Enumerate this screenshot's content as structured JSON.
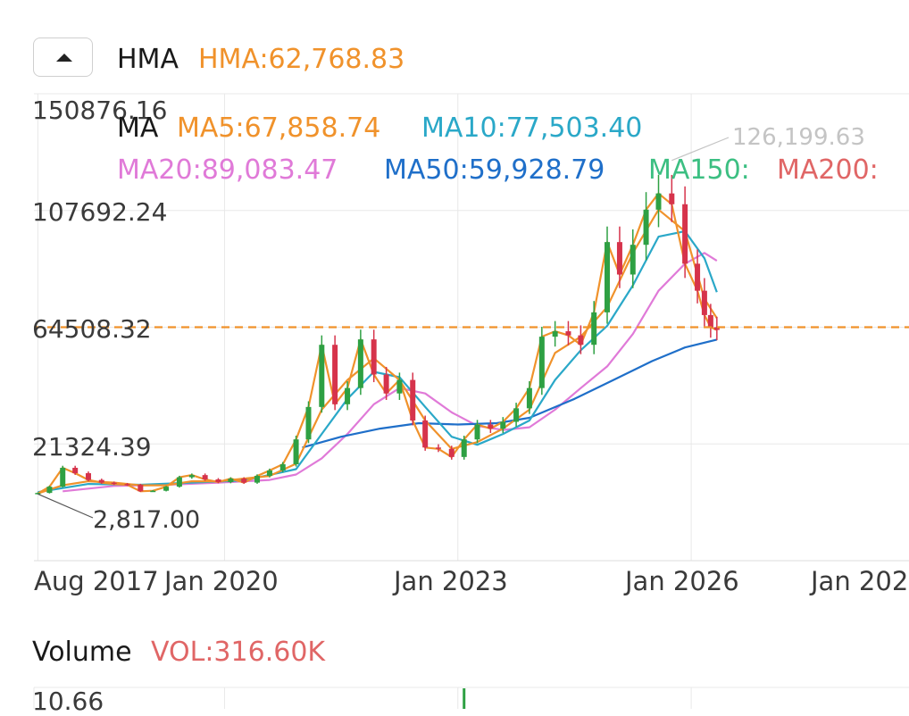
{
  "header": {
    "collapse_icon": "triangle-up-icon",
    "indicator_name": "HMA",
    "indicator_value": "HMA:62,768.83"
  },
  "ma_legend": {
    "name": "MA",
    "ma5": "MA5:67,858.74",
    "ma10": "MA10:77,503.40",
    "ma20": "MA20:89,083.47",
    "ma50": "MA50:59,928.79",
    "ma150": "MA150:",
    "ma200": "MA200:"
  },
  "colors": {
    "hma": "#f0922b",
    "ma5": "#f0922b",
    "ma10": "#2aa8c8",
    "ma20": "#e07ad8",
    "ma50": "#1f6fc9",
    "ma150": "#3cbf82",
    "ma200": "#e06666",
    "up": "#2ea043",
    "down": "#d6334b",
    "grid": "#e8e8e8",
    "current_line": "#f0922b"
  },
  "chart_data": {
    "type": "candlestick",
    "y_ticks": [
      "150876.16",
      "107692.24",
      "64508.32",
      "21324.39"
    ],
    "x_ticks": [
      "Aug 2017",
      "Jan 2020",
      "Jan 2023",
      "Jan 2026",
      "Jan 202"
    ],
    "ylim": [
      -21859,
      150876.16
    ],
    "xlim": [
      2017.55,
      2028.8
    ],
    "current_value_line": 64508.32,
    "max_label": "126,199.63",
    "max_point": [
      2025.75,
      126199.63
    ],
    "min_label": "2,817.00",
    "min_point": [
      2017.6,
      2817.0
    ],
    "series": {
      "close": [
        [
          2017.6,
          3000
        ],
        [
          2017.75,
          5500
        ],
        [
          2017.92,
          12500
        ],
        [
          2018.08,
          10500
        ],
        [
          2018.25,
          8000
        ],
        [
          2018.42,
          7000
        ],
        [
          2018.58,
          6500
        ],
        [
          2018.75,
          6200
        ],
        [
          2018.92,
          3800
        ],
        [
          2019.08,
          4000
        ],
        [
          2019.25,
          5500
        ],
        [
          2019.42,
          9000
        ],
        [
          2019.58,
          9800
        ],
        [
          2019.75,
          8200
        ],
        [
          2019.92,
          7200
        ],
        [
          2020.08,
          8500
        ],
        [
          2020.25,
          7000
        ],
        [
          2020.42,
          9500
        ],
        [
          2020.58,
          11500
        ],
        [
          2020.75,
          13800
        ],
        [
          2020.92,
          23000
        ],
        [
          2021.08,
          35000
        ],
        [
          2021.25,
          58000
        ],
        [
          2021.42,
          36000
        ],
        [
          2021.58,
          42000
        ],
        [
          2021.75,
          60000
        ],
        [
          2021.92,
          47000
        ],
        [
          2022.08,
          40000
        ],
        [
          2022.25,
          45000
        ],
        [
          2022.42,
          30000
        ],
        [
          2022.58,
          20000
        ],
        [
          2022.75,
          19500
        ],
        [
          2022.92,
          16500
        ],
        [
          2023.08,
          23000
        ],
        [
          2023.25,
          28500
        ],
        [
          2023.42,
          27000
        ],
        [
          2023.58,
          29500
        ],
        [
          2023.75,
          34500
        ],
        [
          2023.92,
          42000
        ],
        [
          2024.08,
          61000
        ],
        [
          2024.25,
          63000
        ],
        [
          2024.42,
          61500
        ],
        [
          2024.58,
          58000
        ],
        [
          2024.75,
          70000
        ],
        [
          2024.92,
          96000
        ],
        [
          2025.08,
          84000
        ],
        [
          2025.25,
          95000
        ],
        [
          2025.42,
          108000
        ],
        [
          2025.58,
          114000
        ],
        [
          2025.75,
          110000
        ],
        [
          2025.92,
          88000
        ],
        [
          2026.08,
          78000
        ],
        [
          2026.17,
          69000
        ],
        [
          2026.25,
          64500
        ],
        [
          2026.33,
          63500
        ]
      ],
      "ma5": [
        [
          2017.6,
          3000
        ],
        [
          2017.92,
          6000
        ],
        [
          2018.25,
          7500
        ],
        [
          2018.58,
          7000
        ],
        [
          2018.92,
          6000
        ],
        [
          2019.25,
          6000
        ],
        [
          2019.58,
          7500
        ],
        [
          2019.92,
          7500
        ],
        [
          2020.25,
          8500
        ],
        [
          2020.58,
          9500
        ],
        [
          2020.92,
          14000
        ],
        [
          2021.25,
          34000
        ],
        [
          2021.58,
          45000
        ],
        [
          2021.92,
          53000
        ],
        [
          2022.25,
          45000
        ],
        [
          2022.58,
          30000
        ],
        [
          2022.92,
          19500
        ],
        [
          2023.25,
          22000
        ],
        [
          2023.58,
          27000
        ],
        [
          2023.92,
          34000
        ],
        [
          2024.25,
          55000
        ],
        [
          2024.58,
          61000
        ],
        [
          2024.92,
          72000
        ],
        [
          2025.25,
          92000
        ],
        [
          2025.58,
          108000
        ],
        [
          2025.92,
          100000
        ],
        [
          2026.17,
          75000
        ],
        [
          2026.33,
          67858.74
        ]
      ],
      "ma10": [
        [
          2017.6,
          3500
        ],
        [
          2018.25,
          6500
        ],
        [
          2018.92,
          6200
        ],
        [
          2019.58,
          7000
        ],
        [
          2020.25,
          7800
        ],
        [
          2020.92,
          12000
        ],
        [
          2021.25,
          25000
        ],
        [
          2021.58,
          38000
        ],
        [
          2021.92,
          48000
        ],
        [
          2022.25,
          46000
        ],
        [
          2022.58,
          35000
        ],
        [
          2022.92,
          24000
        ],
        [
          2023.25,
          21000
        ],
        [
          2023.58,
          25000
        ],
        [
          2023.92,
          30000
        ],
        [
          2024.25,
          45000
        ],
        [
          2024.58,
          56000
        ],
        [
          2024.92,
          65000
        ],
        [
          2025.25,
          80000
        ],
        [
          2025.58,
          98000
        ],
        [
          2025.92,
          100000
        ],
        [
          2026.17,
          90000
        ],
        [
          2026.33,
          77503.4
        ]
      ],
      "ma20": [
        [
          2017.92,
          3800
        ],
        [
          2018.58,
          5800
        ],
        [
          2019.25,
          6200
        ],
        [
          2019.92,
          7000
        ],
        [
          2020.58,
          8000
        ],
        [
          2020.92,
          10000
        ],
        [
          2021.25,
          16000
        ],
        [
          2021.58,
          25000
        ],
        [
          2021.92,
          36000
        ],
        [
          2022.25,
          42000
        ],
        [
          2022.58,
          40000
        ],
        [
          2022.92,
          33000
        ],
        [
          2023.25,
          28000
        ],
        [
          2023.58,
          26500
        ],
        [
          2023.92,
          27500
        ],
        [
          2024.25,
          34000
        ],
        [
          2024.58,
          42000
        ],
        [
          2024.92,
          50000
        ],
        [
          2025.25,
          62000
        ],
        [
          2025.58,
          78000
        ],
        [
          2025.92,
          88000
        ],
        [
          2026.17,
          92000
        ],
        [
          2026.33,
          89083.47
        ]
      ],
      "ma50": [
        [
          2021.0,
          20000
        ],
        [
          2021.5,
          24000
        ],
        [
          2022.0,
          27000
        ],
        [
          2022.5,
          29000
        ],
        [
          2023.0,
          28500
        ],
        [
          2023.5,
          29000
        ],
        [
          2023.92,
          31000
        ],
        [
          2024.5,
          38000
        ],
        [
          2025.0,
          45000
        ],
        [
          2025.5,
          52000
        ],
        [
          2025.92,
          57000
        ],
        [
          2026.33,
          59928.79
        ]
      ]
    },
    "candles": [
      [
        2017.6,
        2900,
        3200
      ],
      [
        2017.75,
        3200,
        5500
      ],
      [
        2017.92,
        5500,
        12500
      ],
      [
        2018.08,
        12500,
        10500
      ],
      [
        2018.25,
        10500,
        8000
      ],
      [
        2018.42,
        8000,
        7000
      ],
      [
        2018.58,
        7000,
        6500
      ],
      [
        2018.75,
        6500,
        6200
      ],
      [
        2018.92,
        6200,
        3800
      ],
      [
        2019.08,
        3800,
        4000
      ],
      [
        2019.25,
        4000,
        5500
      ],
      [
        2019.42,
        5500,
        9000
      ],
      [
        2019.58,
        9000,
        9800
      ],
      [
        2019.75,
        9800,
        8200
      ],
      [
        2019.92,
        8200,
        7200
      ],
      [
        2020.08,
        7200,
        8500
      ],
      [
        2020.25,
        8500,
        7000
      ],
      [
        2020.42,
        7000,
        9500
      ],
      [
        2020.58,
        9500,
        11500
      ],
      [
        2020.75,
        11500,
        13800
      ],
      [
        2020.92,
        13800,
        23000
      ],
      [
        2021.08,
        23000,
        35000
      ],
      [
        2021.25,
        35000,
        58000
      ],
      [
        2021.42,
        58000,
        36000
      ],
      [
        2021.58,
        36000,
        42000
      ],
      [
        2021.75,
        42000,
        60000
      ],
      [
        2021.92,
        60000,
        47000
      ],
      [
        2022.08,
        47000,
        40000
      ],
      [
        2022.25,
        40000,
        45000
      ],
      [
        2022.42,
        45000,
        30000
      ],
      [
        2022.58,
        30000,
        20000
      ],
      [
        2022.75,
        20000,
        19500
      ],
      [
        2022.92,
        19500,
        16500
      ],
      [
        2023.08,
        16500,
        23000
      ],
      [
        2023.25,
        23000,
        28500
      ],
      [
        2023.42,
        28500,
        27000
      ],
      [
        2023.58,
        27000,
        29500
      ],
      [
        2023.75,
        29500,
        34500
      ],
      [
        2023.92,
        34500,
        42000
      ],
      [
        2024.08,
        42000,
        61000
      ],
      [
        2024.25,
        61000,
        63000
      ],
      [
        2024.42,
        63000,
        61500
      ],
      [
        2024.58,
        61500,
        58000
      ],
      [
        2024.75,
        58000,
        70000
      ],
      [
        2024.92,
        70000,
        96000
      ],
      [
        2025.08,
        96000,
        84000
      ],
      [
        2025.25,
        84000,
        95000
      ],
      [
        2025.42,
        95000,
        108000
      ],
      [
        2025.58,
        108000,
        114000
      ],
      [
        2025.75,
        114000,
        110000
      ],
      [
        2025.92,
        110000,
        88000
      ],
      [
        2026.08,
        88000,
        78000
      ],
      [
        2026.17,
        78000,
        69000
      ],
      [
        2026.25,
        69000,
        64500
      ],
      [
        2026.33,
        64500,
        63500
      ]
    ]
  },
  "volume": {
    "name": "Volume",
    "value": "VOL:316.60K",
    "y_tick": "10.66"
  }
}
